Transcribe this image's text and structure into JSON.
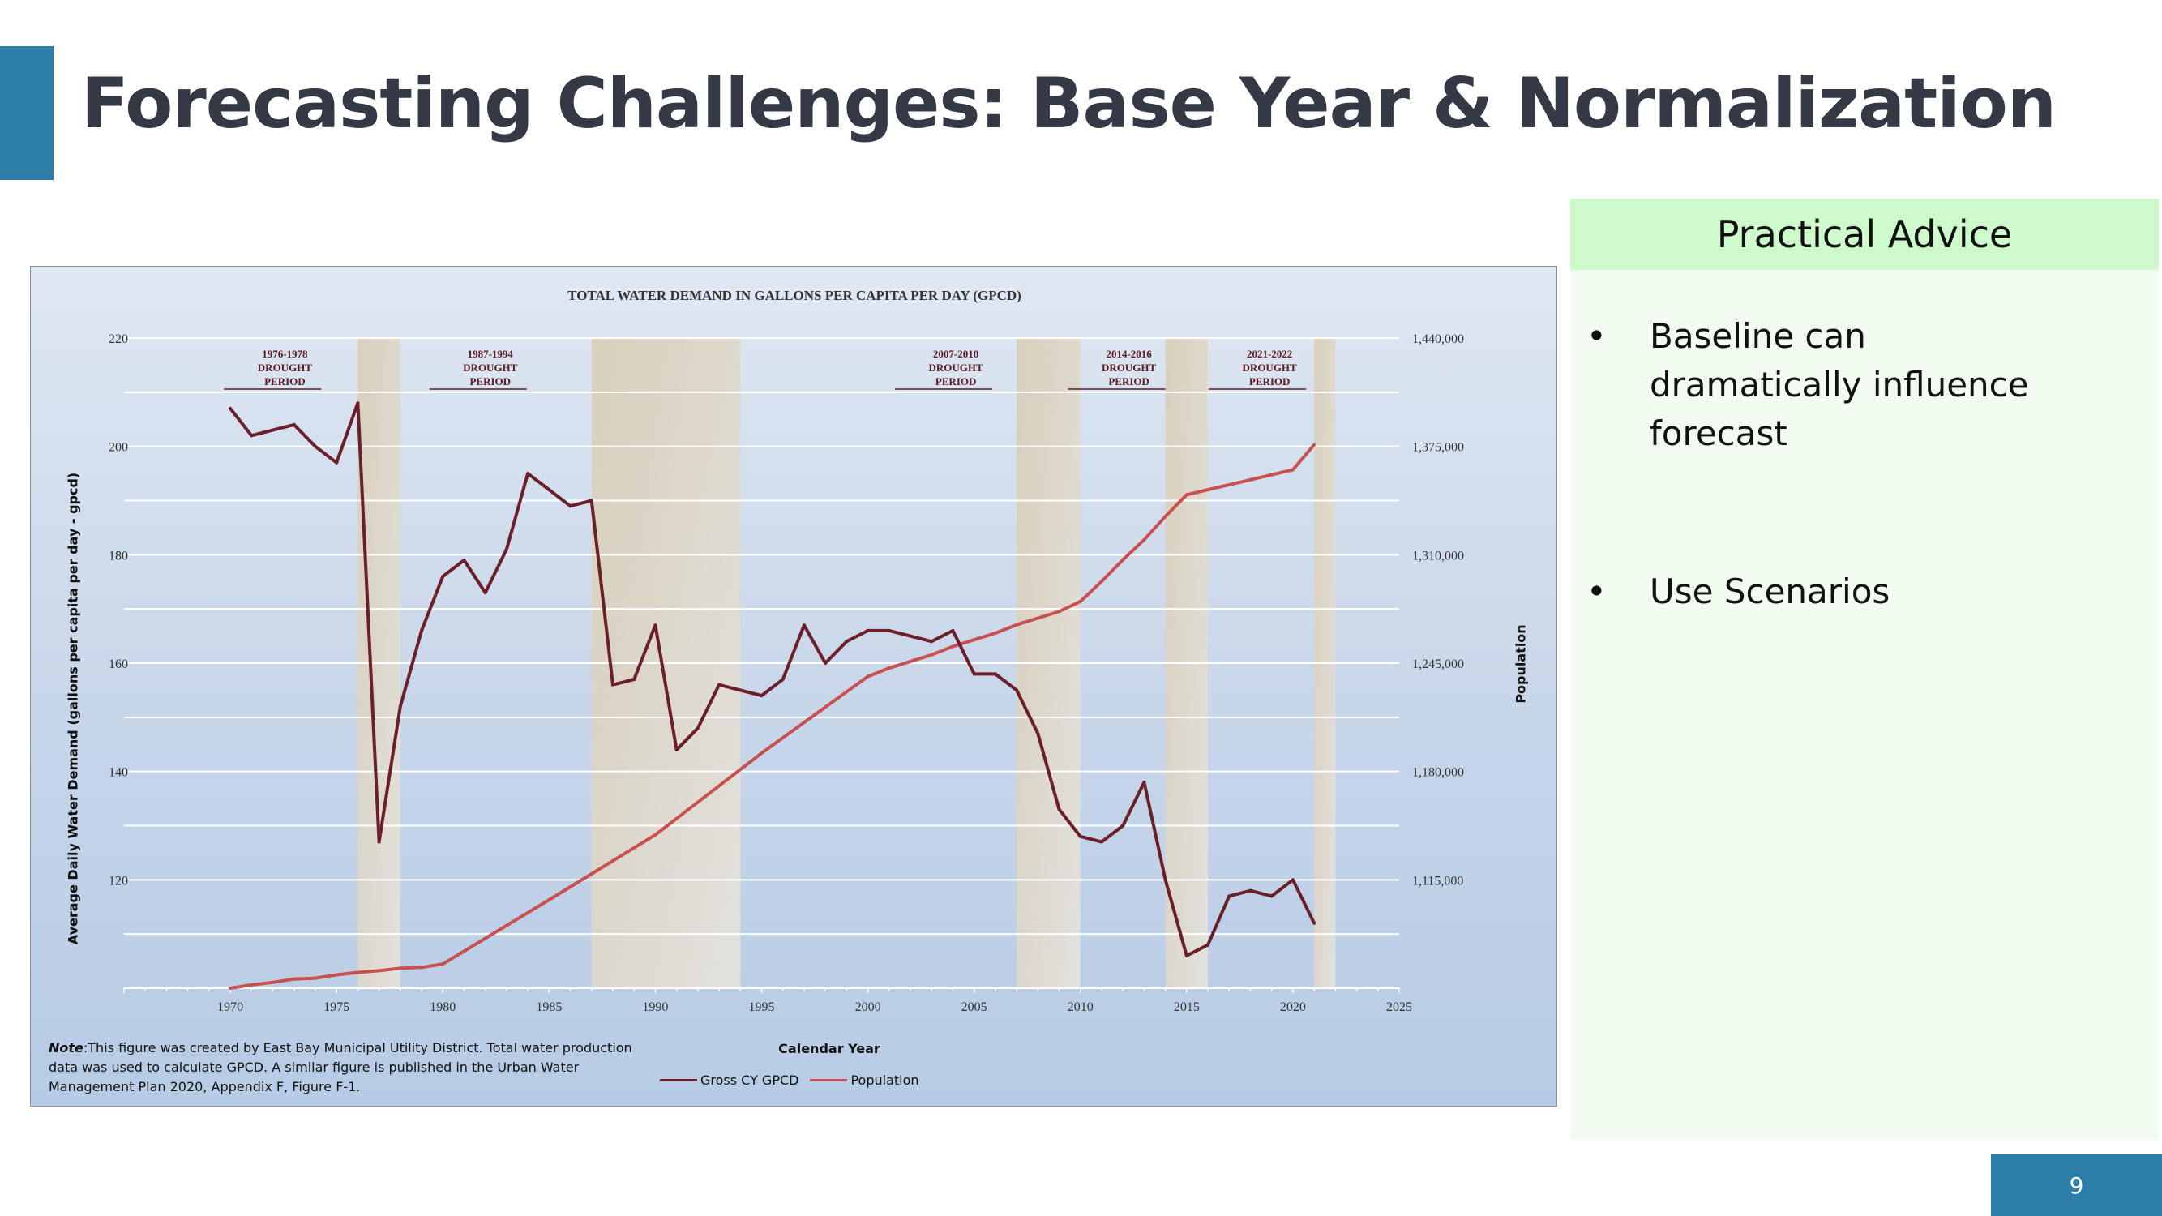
{
  "slide": {
    "title": "Forecasting Challenges: Base Year & Normalization",
    "page_number": "9"
  },
  "colors": {
    "accent": "#2d7fa8",
    "advice_header_bg": "#cdf9cc",
    "advice_panel_bg": "#f1fbf0",
    "gpcd_line": "#6b1f28",
    "population_line": "#c8514f"
  },
  "advice": {
    "heading": "Practical Advice",
    "bullet_symbol": "•",
    "items": [
      "Baseline can dramatically influence forecast",
      "Use Scenarios"
    ]
  },
  "chart_note": {
    "label": "Note",
    "text": ":This figure was created by East Bay Municipal Utility District. Total water production data was used to calculate GPCD. A similar figure is published in the Urban Water Management Plan 2020, Appendix F, Figure F-1."
  },
  "chart_data": {
    "type": "line",
    "title": "TOTAL WATER DEMAND IN GALLONS PER CAPITA PER DAY (GPCD)",
    "xlabel": "Calendar Year",
    "ylabel": "Average Daily Water Demand (gallons per capita per day - gpcd)",
    "y2label": "Population",
    "xlim": [
      1965,
      2025
    ],
    "x_ticks": [
      1970,
      1975,
      1980,
      1985,
      1990,
      1995,
      2000,
      2005,
      2010,
      2015,
      2020,
      2025
    ],
    "ylim": [
      100,
      220
    ],
    "y_ticks": [
      120,
      140,
      160,
      180,
      200,
      220
    ],
    "y2lim": [
      1050000,
      1440000
    ],
    "y2_ticks": [
      "1,115,000",
      "1,180,000",
      "1,245,000",
      "1,310,000",
      "1,375,000",
      "1,440,000"
    ],
    "y2_tick_values": [
      1115000,
      1180000,
      1245000,
      1310000,
      1375000,
      1440000
    ],
    "grid": true,
    "legend_position": "bottom-center",
    "drought_periods": [
      {
        "label_lines": [
          "1976-1978",
          "DROUGHT",
          "PERIOD"
        ],
        "start": 1976,
        "end": 1978
      },
      {
        "label_lines": [
          "1987-1994",
          "DROUGHT",
          "PERIOD"
        ],
        "start": 1987,
        "end": 1994
      },
      {
        "label_lines": [
          "2007-2010",
          "DROUGHT",
          "PERIOD"
        ],
        "start": 2007,
        "end": 2010
      },
      {
        "label_lines": [
          "2014-2016",
          "DROUGHT",
          "PERIOD"
        ],
        "start": 2014,
        "end": 2016
      },
      {
        "label_lines": [
          "2021-2022",
          "DROUGHT",
          "PERIOD"
        ],
        "start": 2021,
        "end": 2022
      }
    ],
    "series": [
      {
        "name": "Gross CY GPCD",
        "color": "#6b1f28",
        "axis": "left",
        "x": [
          1970,
          1971,
          1972,
          1973,
          1974,
          1975,
          1976,
          1977,
          1978,
          1979,
          1980,
          1981,
          1982,
          1983,
          1984,
          1985,
          1986,
          1987,
          1988,
          1989,
          1990,
          1991,
          1992,
          1993,
          1994,
          1995,
          1996,
          1997,
          1998,
          1999,
          2000,
          2001,
          2002,
          2003,
          2004,
          2005,
          2006,
          2007,
          2008,
          2009,
          2010,
          2011,
          2012,
          2013,
          2014,
          2015,
          2016,
          2017,
          2018,
          2019,
          2020,
          2021
        ],
        "values": [
          207,
          202,
          203,
          204,
          200,
          197,
          208,
          127,
          152,
          166,
          176,
          179,
          173,
          181,
          195,
          192,
          189,
          190,
          156,
          157,
          167,
          144,
          148,
          156,
          155,
          154,
          157,
          167,
          160,
          164,
          166,
          166,
          165,
          164,
          166,
          158,
          158,
          155,
          147,
          133,
          128,
          127,
          130,
          138,
          120,
          106,
          108,
          117,
          118,
          117,
          120,
          112
        ]
      },
      {
        "name": "Population",
        "color": "#c8514f",
        "axis": "right",
        "x": [
          1970,
          1971,
          1972,
          1973,
          1974,
          1975,
          1976,
          1977,
          1978,
          1979,
          1980,
          1985,
          1990,
          1995,
          2000,
          2001,
          2002,
          2003,
          2004,
          2005,
          2006,
          2007,
          2008,
          2009,
          2010,
          2011,
          2012,
          2013,
          2014,
          2015,
          2016,
          2017,
          2018,
          2019,
          2020,
          2021
        ],
        "values": [
          1050000,
          1052000,
          1053500,
          1055500,
          1056000,
          1058000,
          1059500,
          1060500,
          1062000,
          1062500,
          1064500,
          1103000,
          1142000,
          1191000,
          1237000,
          1242000,
          1246000,
          1250000,
          1255000,
          1259000,
          1263000,
          1268000,
          1272000,
          1276000,
          1282000,
          1294000,
          1307000,
          1319000,
          1333000,
          1346000,
          1349000,
          1352000,
          1355000,
          1358000,
          1361000,
          1376000
        ]
      }
    ]
  }
}
